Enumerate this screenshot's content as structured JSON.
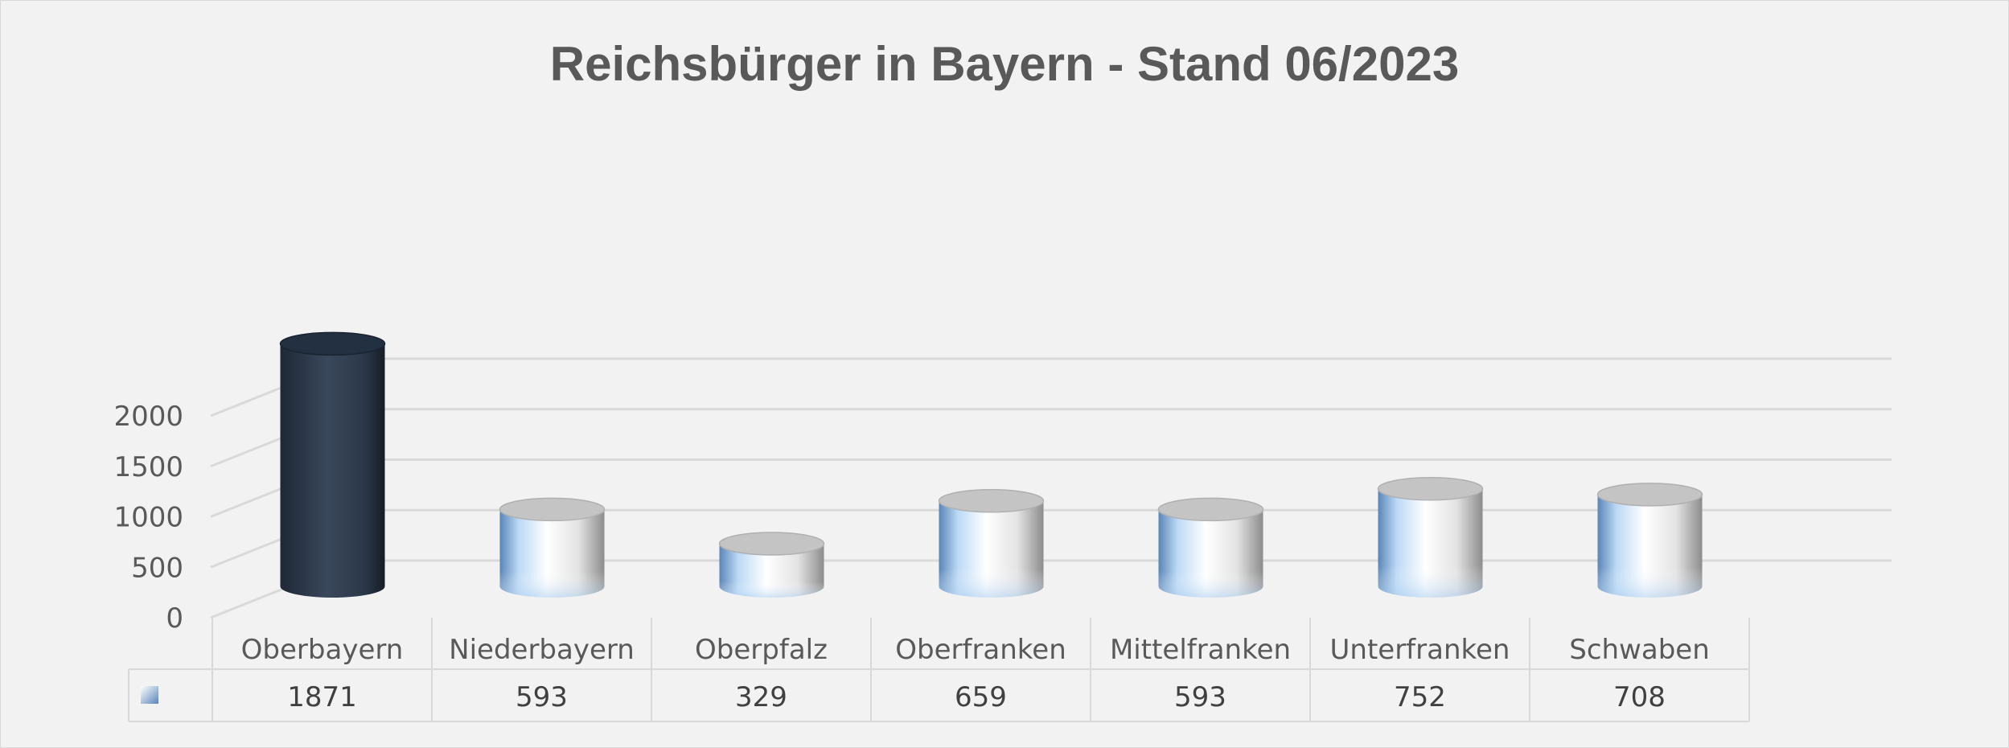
{
  "chart_data": {
    "type": "bar",
    "style": "3d-cylinder",
    "title": "Reichsbürger in Bayern  - Stand 06/2023",
    "xlabel": "",
    "ylabel": "",
    "categories": [
      "Oberbayern",
      "Niederbayern",
      "Oberpfalz",
      "Oberfranken",
      "Mittelfranken",
      "Unterfranken",
      "Schwaben"
    ],
    "series": [
      {
        "values": [
          1871,
          593,
          329,
          659,
          593,
          752,
          708
        ]
      }
    ],
    "highlight_index": 0,
    "y_ticks": [
      0,
      500,
      1000,
      1500,
      2000
    ],
    "ylim": [
      0,
      2000
    ],
    "grid": true,
    "legend": "none",
    "data_table": true,
    "colors": {
      "background": "#f2f2f2",
      "highlight_bar": "#2e3b4e",
      "bar_light": "#ffffff",
      "bar_tint": "#bcd9f5",
      "bar_shadow": "#8c8c8c",
      "gridline": "#d9d9d9",
      "text": "#595959"
    }
  }
}
